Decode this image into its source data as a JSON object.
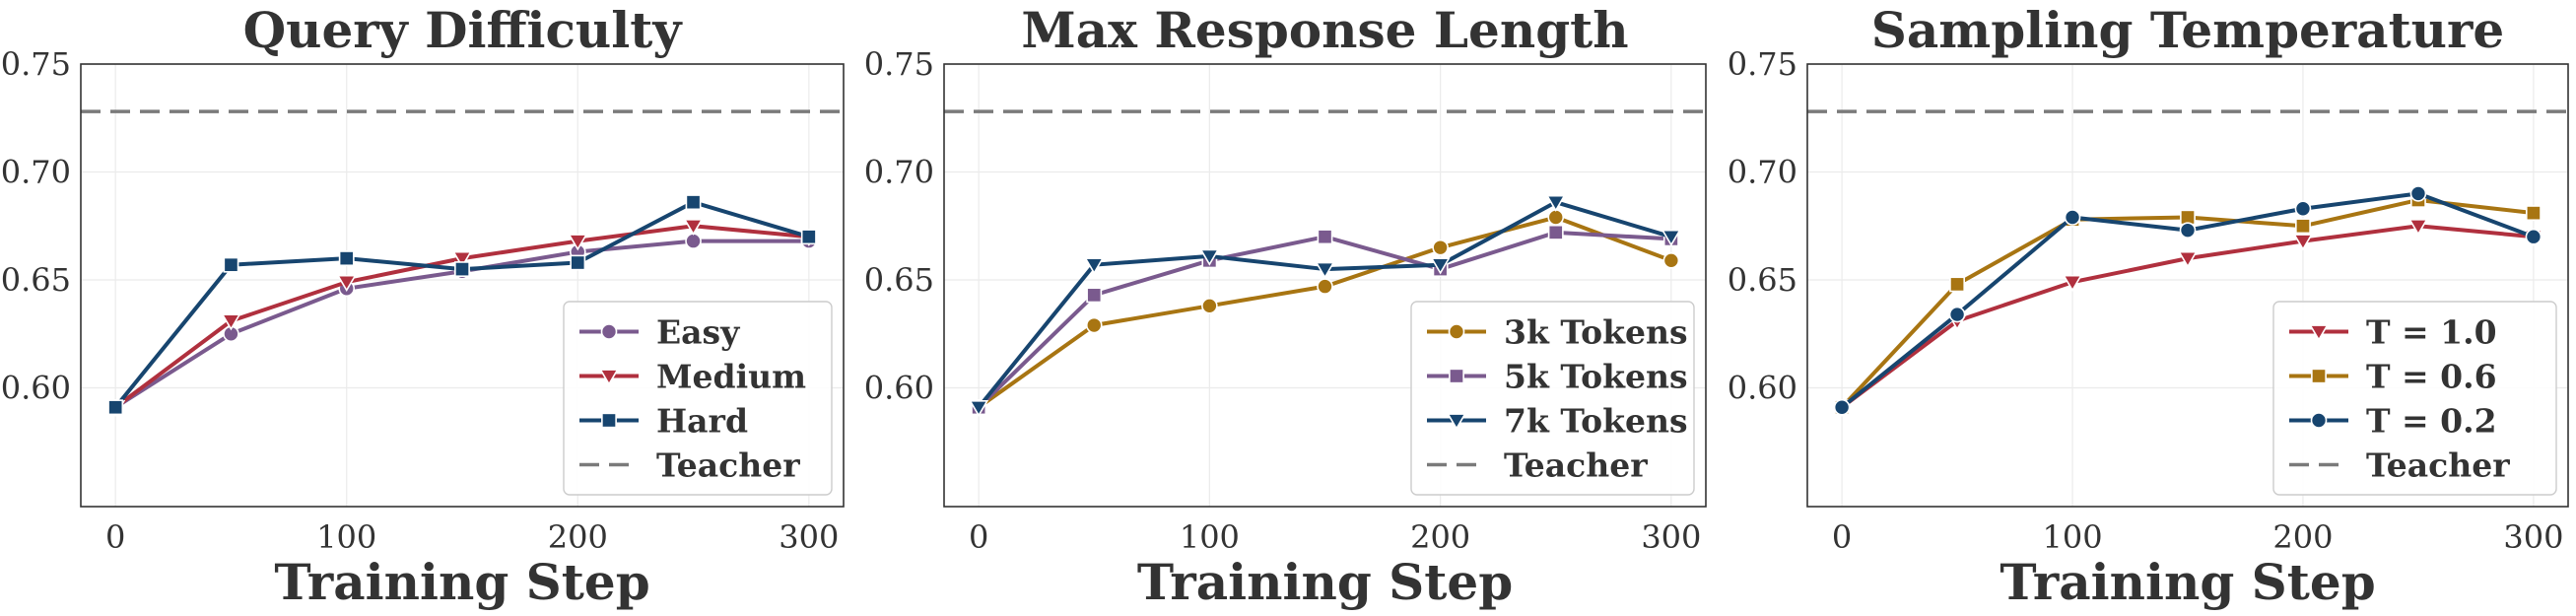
{
  "colors": {
    "purple": "#7a5a8e",
    "crimson": "#b0303e",
    "navy": "#17456f",
    "gold": "#a87512",
    "teacher": "#7a7a7a",
    "grid": "#ebebeb",
    "text": "#333333"
  },
  "chart_data": [
    {
      "type": "line",
      "title": "Query Difficulty",
      "xlabel": "Training Step",
      "ylabel": "",
      "xlim": [
        -15,
        315
      ],
      "ylim": [
        0.545,
        0.75
      ],
      "xticks": [
        0,
        100,
        200,
        300
      ],
      "yticks": [
        0.6,
        0.65,
        0.7,
        0.75
      ],
      "xtick_labels": [
        "0",
        "100",
        "200",
        "300"
      ],
      "ytick_labels": [
        "0.60",
        "0.65",
        "0.70",
        "0.75"
      ],
      "grid": true,
      "legend_position": "lower-right",
      "x": [
        0,
        50,
        100,
        150,
        200,
        250,
        300
      ],
      "series": [
        {
          "name": "Easy",
          "color_key": "purple",
          "marker": "circle",
          "values": [
            0.591,
            0.625,
            0.646,
            0.654,
            0.663,
            0.668,
            0.668
          ]
        },
        {
          "name": "Medium",
          "color_key": "crimson",
          "marker": "triangle-down",
          "values": [
            0.591,
            0.631,
            0.649,
            0.66,
            0.668,
            0.675,
            0.67
          ]
        },
        {
          "name": "Hard",
          "color_key": "navy",
          "marker": "square",
          "values": [
            0.591,
            0.657,
            0.66,
            0.655,
            0.658,
            0.686,
            0.67
          ]
        }
      ],
      "reference_line": {
        "name": "Teacher",
        "value": 0.728,
        "color_key": "teacher",
        "style": "dashed"
      }
    },
    {
      "type": "line",
      "title": "Max Response Length",
      "xlabel": "Training Step",
      "ylabel": "",
      "xlim": [
        -15,
        315
      ],
      "ylim": [
        0.545,
        0.75
      ],
      "xticks": [
        0,
        100,
        200,
        300
      ],
      "yticks": [
        0.6,
        0.65,
        0.7,
        0.75
      ],
      "xtick_labels": [
        "0",
        "100",
        "200",
        "300"
      ],
      "ytick_labels": [
        "0.60",
        "0.65",
        "0.70",
        "0.75"
      ],
      "grid": true,
      "legend_position": "lower-right",
      "x": [
        0,
        50,
        100,
        150,
        200,
        250,
        300
      ],
      "series": [
        {
          "name": "3k Tokens",
          "color_key": "gold",
          "marker": "circle",
          "values": [
            0.591,
            0.629,
            0.638,
            0.647,
            0.665,
            0.679,
            0.659
          ]
        },
        {
          "name": "5k Tokens",
          "color_key": "purple",
          "marker": "square",
          "values": [
            0.591,
            0.643,
            0.659,
            0.67,
            0.655,
            0.672,
            0.669
          ]
        },
        {
          "name": "7k Tokens",
          "color_key": "navy",
          "marker": "triangle-down",
          "values": [
            0.591,
            0.657,
            0.661,
            0.655,
            0.657,
            0.686,
            0.67
          ]
        }
      ],
      "reference_line": {
        "name": "Teacher",
        "value": 0.728,
        "color_key": "teacher",
        "style": "dashed"
      }
    },
    {
      "type": "line",
      "title": "Sampling Temperature",
      "xlabel": "Training Step",
      "ylabel": "",
      "xlim": [
        -15,
        315
      ],
      "ylim": [
        0.545,
        0.75
      ],
      "xticks": [
        0,
        100,
        200,
        300
      ],
      "yticks": [
        0.6,
        0.65,
        0.7,
        0.75
      ],
      "xtick_labels": [
        "0",
        "100",
        "200",
        "300"
      ],
      "ytick_labels": [
        "0.60",
        "0.65",
        "0.70",
        "0.75"
      ],
      "grid": true,
      "legend_position": "lower-right",
      "x": [
        0,
        50,
        100,
        150,
        200,
        250,
        300
      ],
      "series": [
        {
          "name": "T = 1.0",
          "color_key": "crimson",
          "marker": "triangle-down",
          "values": [
            0.591,
            0.631,
            0.649,
            0.66,
            0.668,
            0.675,
            0.67
          ]
        },
        {
          "name": "T = 0.6",
          "color_key": "gold",
          "marker": "square",
          "values": [
            0.591,
            0.648,
            0.678,
            0.679,
            0.675,
            0.687,
            0.681
          ]
        },
        {
          "name": "T = 0.2",
          "color_key": "navy",
          "marker": "circle",
          "values": [
            0.591,
            0.634,
            0.679,
            0.673,
            0.683,
            0.69,
            0.67
          ]
        }
      ],
      "reference_line": {
        "name": "Teacher",
        "value": 0.728,
        "color_key": "teacher",
        "style": "dashed"
      }
    }
  ]
}
